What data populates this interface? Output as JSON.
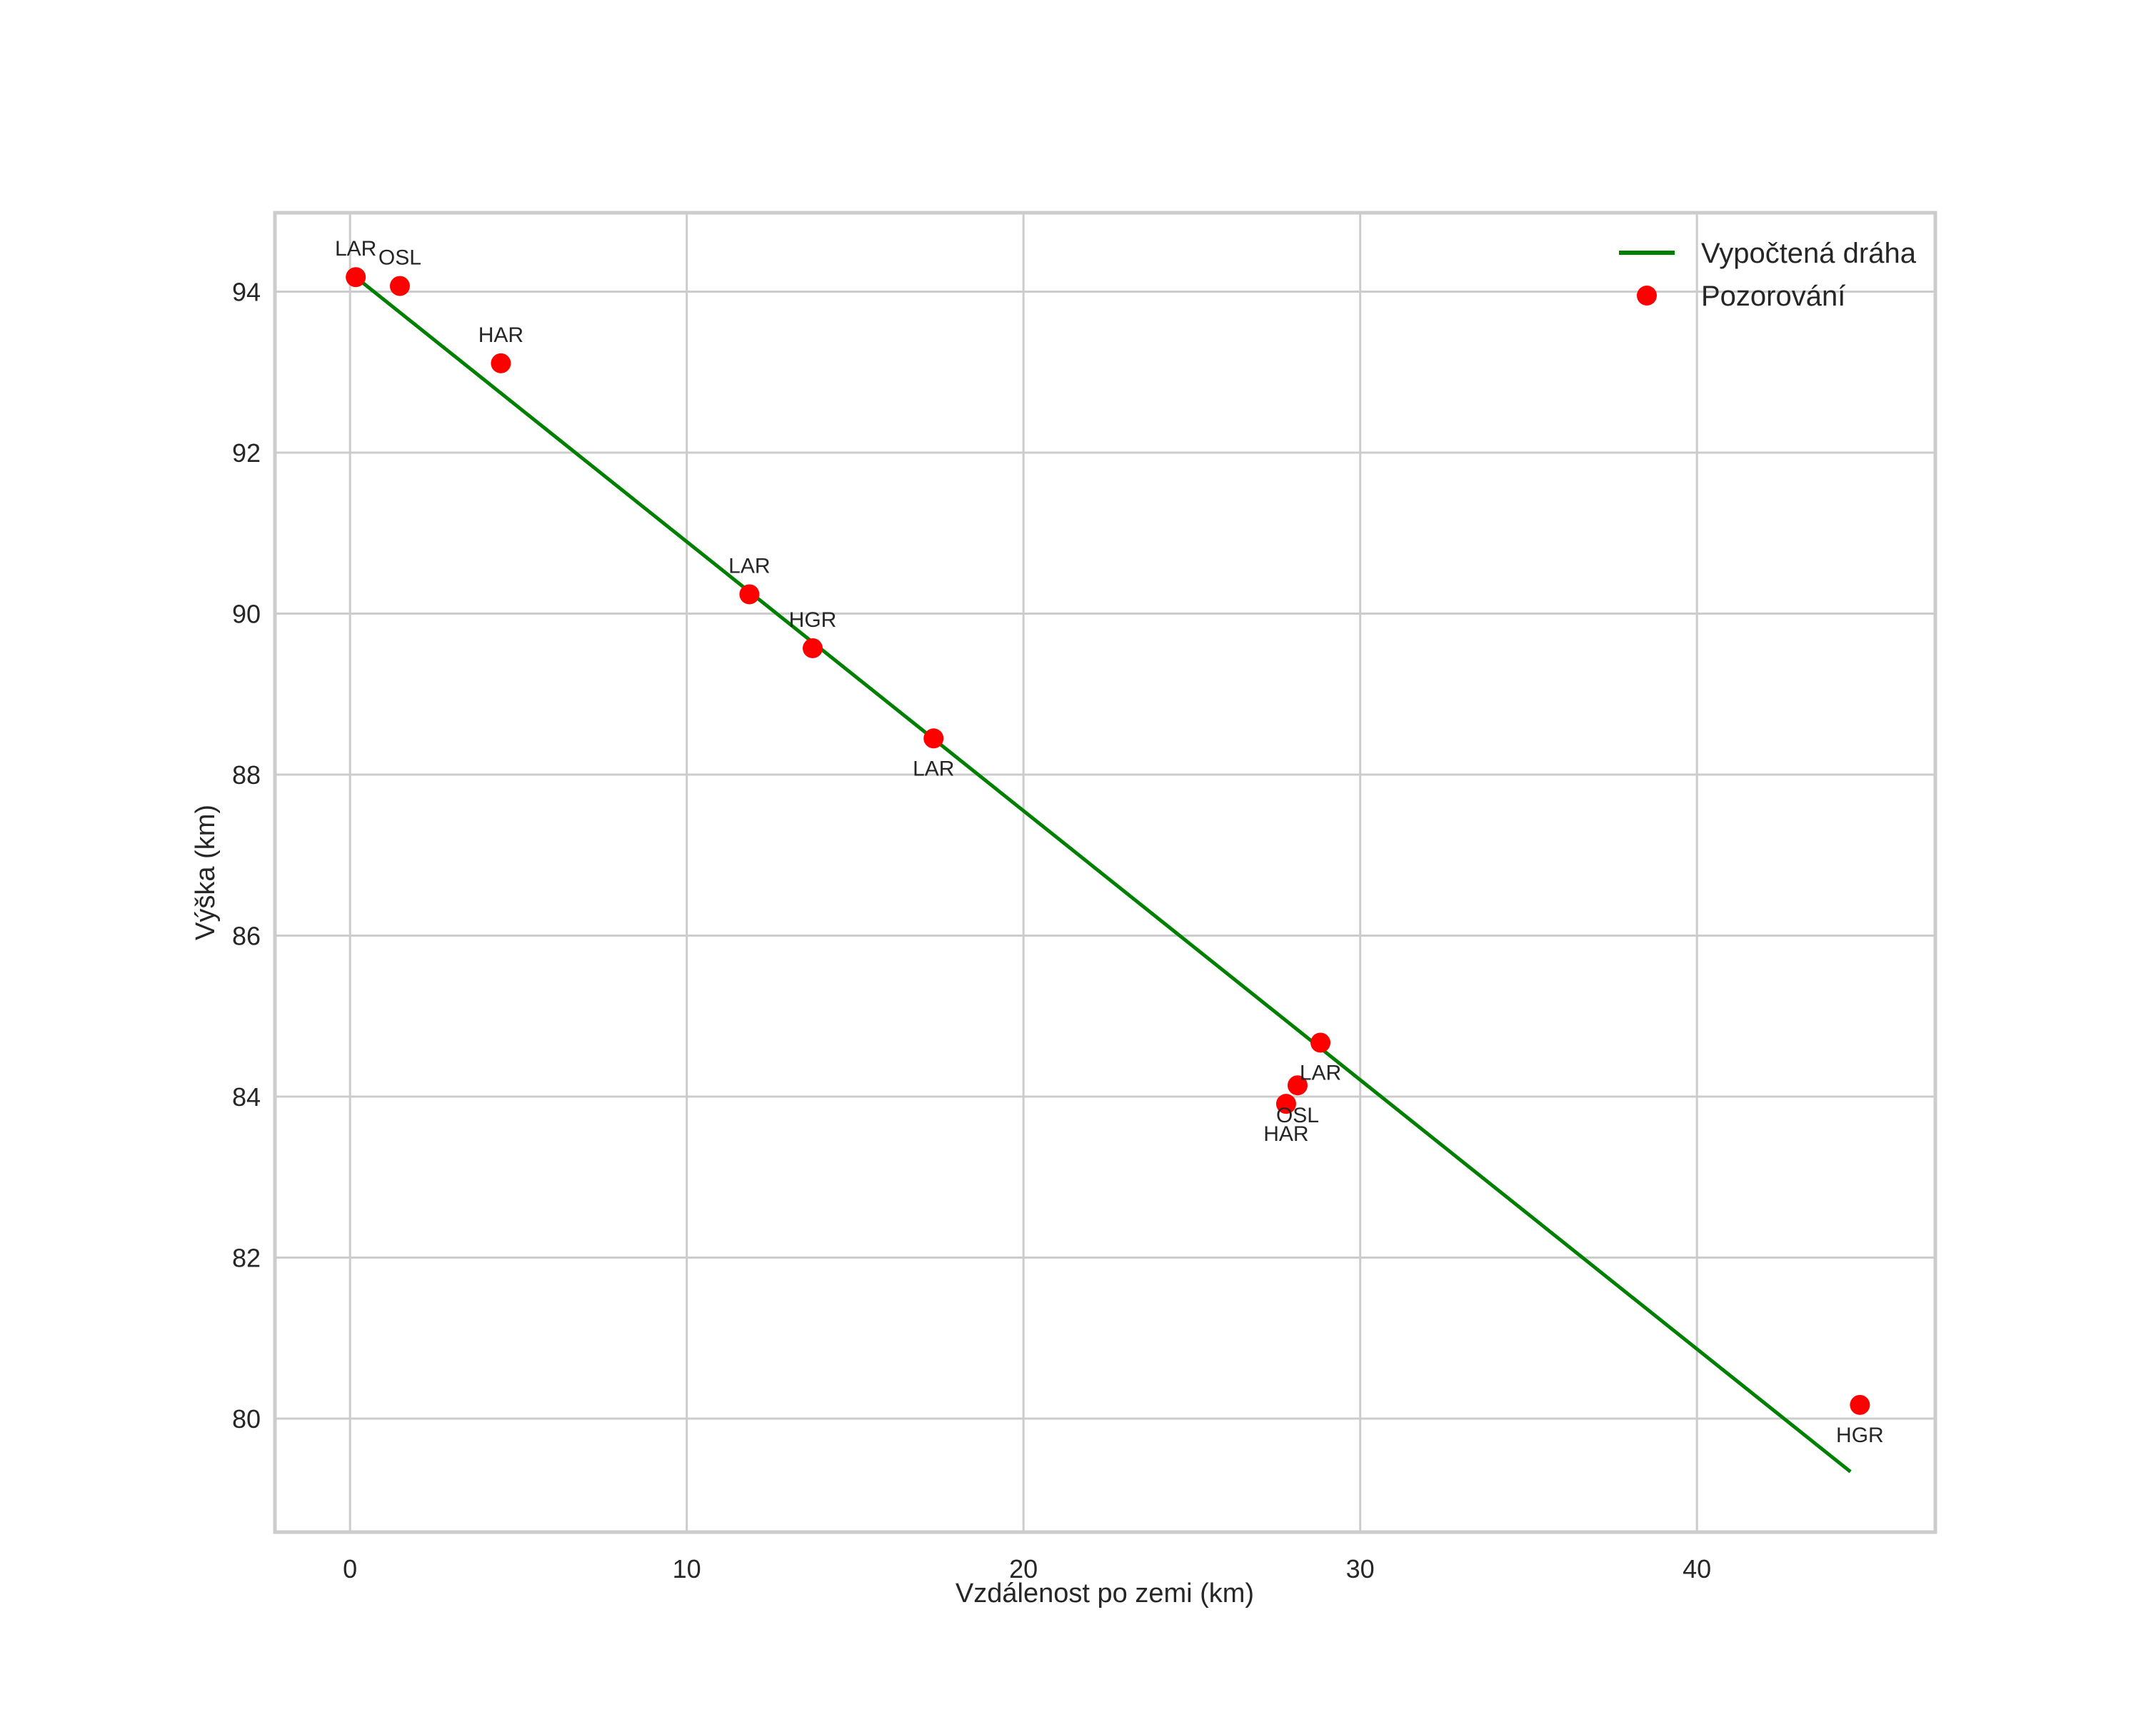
{
  "chart_data": {
    "type": "scatter",
    "title": "",
    "xlabel": "Vzdálenost po zemi (km)",
    "ylabel": "Výška (km)",
    "xlim": [
      -2.23,
      47.08
    ],
    "ylim": [
      78.59,
      94.98
    ],
    "xticks": [
      0,
      10,
      20,
      30,
      40
    ],
    "yticks": [
      80,
      82,
      84,
      86,
      88,
      90,
      92,
      94
    ],
    "grid": true,
    "legend": {
      "position": "upper right",
      "entries": [
        {
          "label": "Vypočtená dráha",
          "type": "line",
          "color": "#008000"
        },
        {
          "label": "Pozorování",
          "type": "marker",
          "color": "#ff0000"
        }
      ]
    },
    "series": [
      {
        "name": "Vypočtená dráha",
        "type": "line",
        "color": "#008000",
        "x": [
          0.17,
          44.56
        ],
        "y": [
          94.18,
          79.34
        ]
      },
      {
        "name": "Pozorování",
        "type": "scatter",
        "color": "#ff0000",
        "points": [
          {
            "station": "LAR",
            "x": 0.17,
            "y": 94.18,
            "label_pos": "above"
          },
          {
            "station": "OSL",
            "x": 1.48,
            "y": 94.07,
            "label_pos": "above"
          },
          {
            "station": "HAR",
            "x": 4.48,
            "y": 93.11,
            "label_pos": "above"
          },
          {
            "station": "LAR",
            "x": 11.86,
            "y": 90.24,
            "label_pos": "above"
          },
          {
            "station": "HGR",
            "x": 13.74,
            "y": 89.57,
            "label_pos": "above"
          },
          {
            "station": "LAR",
            "x": 17.33,
            "y": 88.45,
            "label_pos": "below"
          },
          {
            "station": "LAR",
            "x": 28.82,
            "y": 84.67,
            "label_pos": "below"
          },
          {
            "station": "OSL",
            "x": 28.14,
            "y": 84.14,
            "label_pos": "below"
          },
          {
            "station": "HAR",
            "x": 27.8,
            "y": 83.91,
            "label_pos": "below"
          },
          {
            "station": "HGR",
            "x": 44.84,
            "y": 80.17,
            "label_pos": "below"
          }
        ]
      }
    ]
  },
  "colors": {
    "grid": "#cccccc",
    "spine": "#cccccc",
    "text": "#262626",
    "line": "#008000",
    "marker": "#ff0000"
  }
}
